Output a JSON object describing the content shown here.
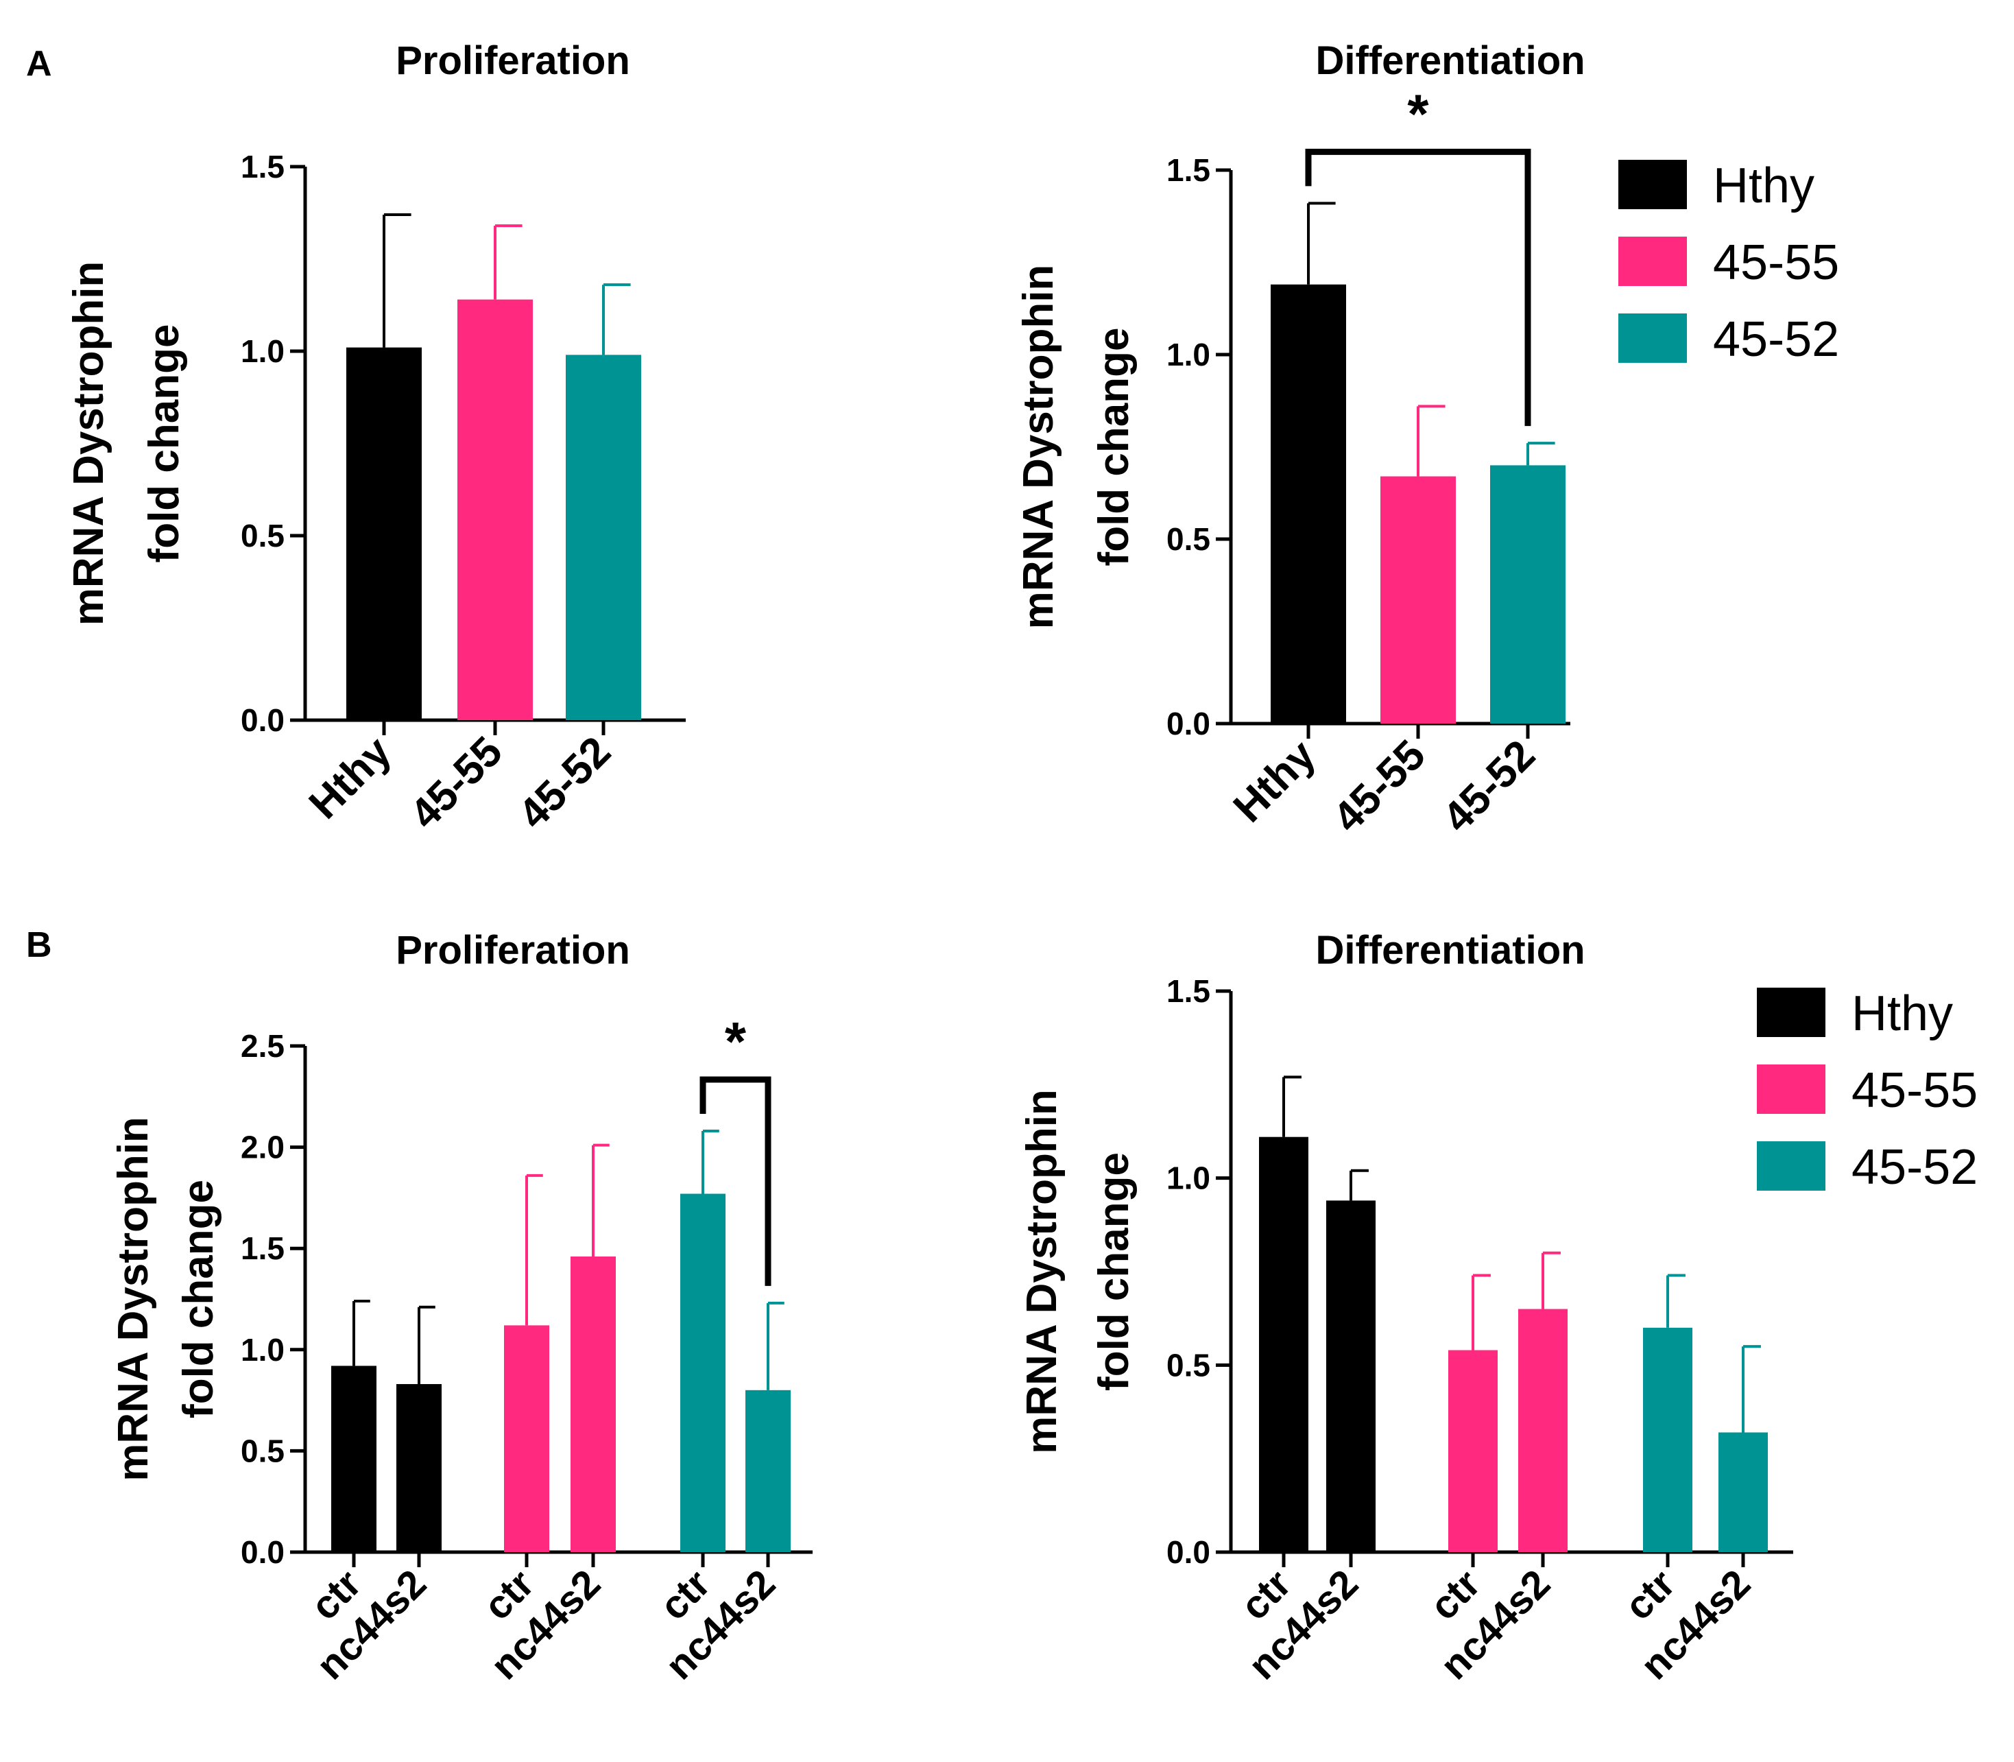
{
  "panel_labels": [
    "A",
    "B"
  ],
  "colors": {
    "Hthy": "#000000",
    "45-55": "#ff2a7f",
    "45-52": "#009393"
  },
  "legend": [
    "Hthy",
    "45-55",
    "45-52"
  ],
  "chart_data": [
    {
      "id": "A-prolif",
      "panel": "A",
      "type": "bar",
      "title": "Proliferation",
      "ylabel": [
        "mRNA Dystrophin",
        "fold change"
      ],
      "xlabel": "",
      "ylim": [
        0,
        1.5
      ],
      "yticks": [
        0.0,
        0.5,
        1.0,
        1.5
      ],
      "ytick_labels": [
        "0.0",
        "0.5",
        "1.0",
        "1.5"
      ],
      "categories": [
        "Hthy",
        "45-55",
        "45-52"
      ],
      "groups": [
        "Hthy",
        "45-55",
        "45-52"
      ],
      "values": [
        1.01,
        1.14,
        0.99
      ],
      "errors": [
        0.36,
        0.2,
        0.19
      ],
      "significance": []
    },
    {
      "id": "A-diff",
      "panel": "A",
      "type": "bar",
      "title": "Differentiation",
      "ylabel": [
        "mRNA Dystrophin",
        "fold change"
      ],
      "xlabel": "",
      "ylim": [
        0,
        1.5
      ],
      "yticks": [
        0.0,
        0.5,
        1.0,
        1.5
      ],
      "ytick_labels": [
        "0.0",
        "0.5",
        "1.0",
        "1.5"
      ],
      "categories": [
        "Hthy",
        "45-55",
        "45-52"
      ],
      "groups": [
        "Hthy",
        "45-55",
        "45-52"
      ],
      "values": [
        1.19,
        0.67,
        0.7
      ],
      "errors": [
        0.22,
        0.19,
        0.06
      ],
      "significance": [
        {
          "from": 0,
          "to": 2,
          "label": "*"
        }
      ]
    },
    {
      "id": "B-prolif",
      "panel": "B",
      "type": "bar",
      "title": "Proliferation",
      "ylabel": [
        "mRNA Dystrophin",
        "fold change"
      ],
      "xlabel": "",
      "ylim": [
        0,
        2.5
      ],
      "yticks": [
        0.0,
        0.5,
        1.0,
        1.5,
        2.0,
        2.5
      ],
      "ytick_labels": [
        "0.0",
        "0.5",
        "1.0",
        "1.5",
        "2.0",
        "2.5"
      ],
      "categories": [
        "ctr",
        "nc44s2",
        "ctr",
        "nc44s2",
        "ctr",
        "nc44s2"
      ],
      "groups": [
        "Hthy",
        "Hthy",
        "45-55",
        "45-55",
        "45-52",
        "45-52"
      ],
      "values": [
        0.92,
        0.83,
        1.12,
        1.46,
        1.77,
        0.8
      ],
      "errors": [
        0.32,
        0.38,
        0.74,
        0.55,
        0.31,
        0.43
      ],
      "significance": [
        {
          "from": 4,
          "to": 5,
          "label": "*"
        }
      ]
    },
    {
      "id": "B-diff",
      "panel": "B",
      "type": "bar",
      "title": "Differentiation",
      "ylabel": [
        "mRNA Dystrophin",
        "fold change"
      ],
      "xlabel": "",
      "ylim": [
        0,
        1.5
      ],
      "yticks": [
        0.0,
        0.5,
        1.0,
        1.5
      ],
      "ytick_labels": [
        "0.0",
        "0.5",
        "1.0",
        "1.5"
      ],
      "categories": [
        "ctr",
        "nc44s2",
        "ctr",
        "nc44s2",
        "ctr",
        "nc44s2"
      ],
      "groups": [
        "Hthy",
        "Hthy",
        "45-55",
        "45-55",
        "45-52",
        "45-52"
      ],
      "values": [
        1.11,
        0.94,
        0.54,
        0.65,
        0.6,
        0.32
      ],
      "errors": [
        0.16,
        0.08,
        0.2,
        0.15,
        0.14,
        0.23
      ],
      "significance": []
    }
  ]
}
